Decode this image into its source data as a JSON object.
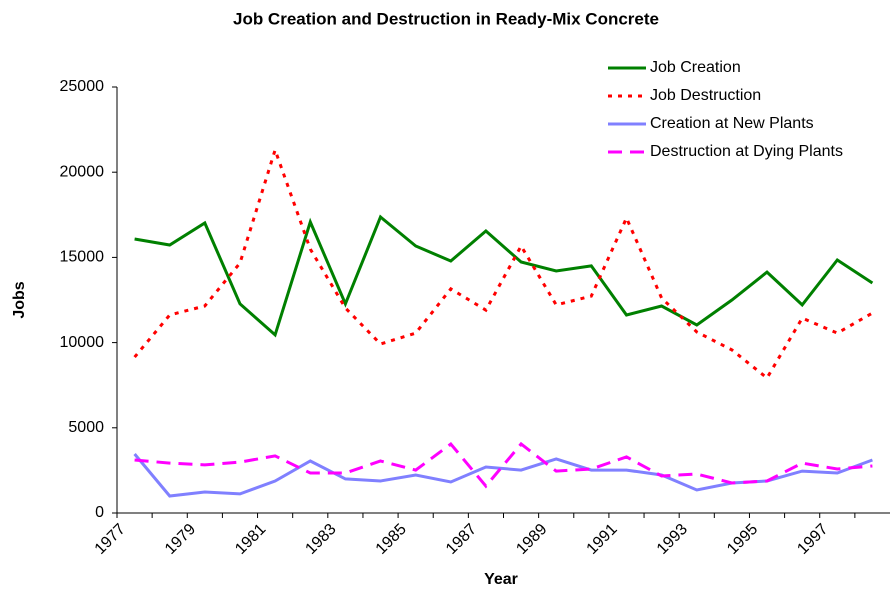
{
  "chart_data": {
    "type": "line",
    "title": "Job Creation and Destruction in Ready-Mix Concrete",
    "x_label": "Year",
    "y_label": "Jobs",
    "categories": [
      "1977",
      null,
      "1979",
      null,
      "1981",
      null,
      "1983",
      null,
      "1985",
      null,
      "1987",
      null,
      "1989",
      null,
      "1991",
      null,
      "1993",
      null,
      "1995",
      null,
      "1997",
      null
    ],
    "ylim": [
      0,
      25000
    ],
    "yticks": [
      0,
      5000,
      10000,
      15000,
      20000,
      25000
    ],
    "grid": false,
    "legend": "top-right",
    "series": [
      {
        "name": "Job Creation",
        "color": "#008000",
        "dash": "solid",
        "values": [
          16080,
          15730,
          17020,
          12270,
          10450,
          17080,
          12270,
          17370,
          15670,
          14790,
          16550,
          14730,
          14200,
          14500,
          11620,
          12150,
          11030,
          12500,
          14140,
          12210,
          14850,
          13500
        ]
      },
      {
        "name": "Job Destruction",
        "color": "#ff0000",
        "dash": "dotted",
        "values": [
          9150,
          11620,
          12150,
          14670,
          21300,
          15490,
          12030,
          9920,
          10560,
          13150,
          11910,
          15670,
          12210,
          12730,
          17310,
          12620,
          10620,
          9570,
          7920,
          11440,
          10560,
          11740
        ]
      },
      {
        "name": "Creation at New Plants",
        "color": "#8080ff",
        "dash": "solid",
        "values": [
          3460,
          1000,
          1230,
          1120,
          1880,
          3050,
          2000,
          1880,
          2230,
          1820,
          2700,
          2520,
          3170,
          2520,
          2520,
          2230,
          1350,
          1760,
          1880,
          2460,
          2350,
          3110
        ]
      },
      {
        "name": "Destruction at Dying Plants",
        "color": "#ff00ff",
        "dash": "dashed",
        "values": [
          3110,
          2930,
          2820,
          2990,
          3350,
          2350,
          2350,
          3050,
          2520,
          4050,
          1580,
          4050,
          2460,
          2580,
          3290,
          2170,
          2290,
          1760,
          1880,
          2930,
          2580,
          2760
        ]
      }
    ]
  }
}
